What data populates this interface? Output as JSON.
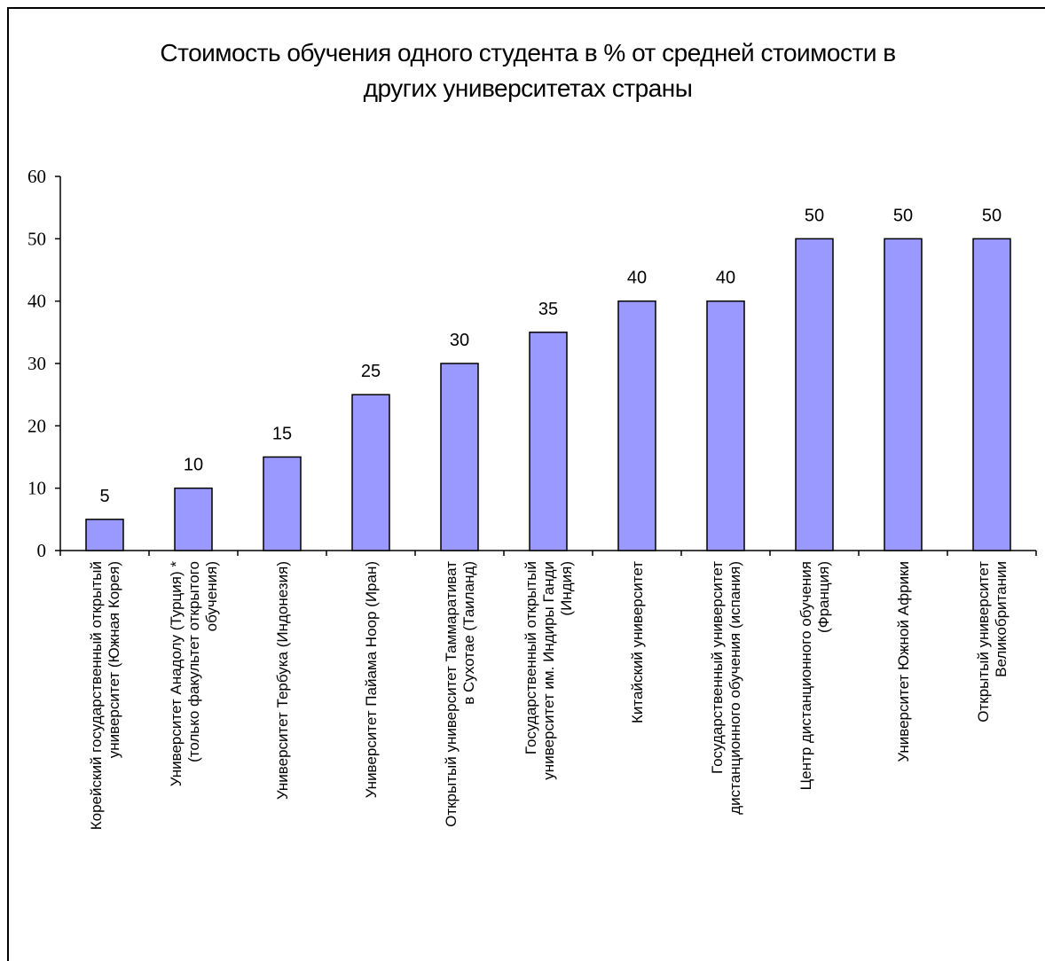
{
  "chart_data": {
    "type": "bar",
    "title_lines": [
      "Стоимость обучения одного студента в % от средней стоимости в",
      "других университетах страны"
    ],
    "categories": [
      [
        "Корейский государственный открытый",
        "университет (Южная Корея)"
      ],
      [
        "Университет Анадолу (Турция) *",
        "(только факультет открытого",
        "обучения)"
      ],
      [
        "Университет Тербука (Индонезия)"
      ],
      [
        "Университет Пайама Ноор (Иран)"
      ],
      [
        "Открытый университет Таммаративат",
        "в Сухотае (Таиланд)"
      ],
      [
        "Государственный открытый",
        "университет им. Индиры Ганди",
        "(Индия)"
      ],
      [
        "Китайский университет"
      ],
      [
        "Государственный университет",
        "дистанционного обучения (испания)"
      ],
      [
        "Центр дистанционного обучения",
        "(Франция)"
      ],
      [
        "Университет Южной Африки"
      ],
      [
        "Открытый университет",
        "Великобритании"
      ]
    ],
    "values": [
      5,
      10,
      15,
      25,
      30,
      35,
      40,
      40,
      50,
      50,
      50
    ],
    "data_labels": [
      "5",
      "10",
      "15",
      "25",
      "30",
      "35",
      "40",
      "40",
      "50",
      "50",
      "50"
    ],
    "ylim": [
      0,
      60
    ],
    "yticks": [
      "0",
      "10",
      "20",
      "30",
      "40",
      "50",
      "60"
    ],
    "xlabel": "",
    "ylabel": "",
    "grid": false,
    "legend": "none",
    "colors": {
      "bar_fill": "#9999ff",
      "bar_stroke": "#000000",
      "axis": "#000000",
      "text": "#000000"
    }
  }
}
